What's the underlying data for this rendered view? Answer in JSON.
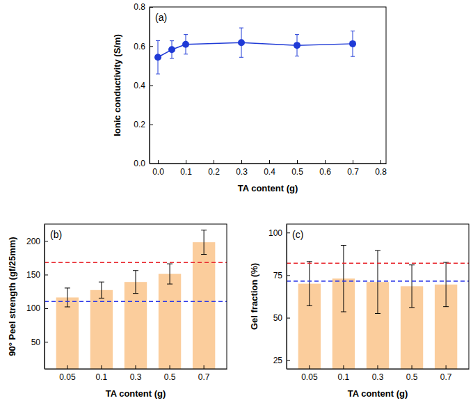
{
  "chart_data": [
    {
      "type": "line",
      "annotation": "(a)",
      "x_label": "TA content (g)",
      "y_label": "Ionic conductivity (S/m)",
      "x": [
        0,
        0.05,
        0.1,
        0.3,
        0.5,
        0.7
      ],
      "values": [
        0.543,
        0.582,
        0.609,
        0.618,
        0.604,
        0.612
      ],
      "errors": [
        0.085,
        0.045,
        0.05,
        0.075,
        0.055,
        0.065
      ],
      "color": "#1f3ad6",
      "marker": "circle",
      "line_style": "solid",
      "xlim": [
        -0.03,
        0.82
      ],
      "xticks": [
        {
          "value": 0,
          "label": "0.0"
        },
        0.1,
        0.2,
        0.3,
        0.4,
        0.5,
        0.6,
        0.7,
        0.8
      ],
      "ylim": [
        0,
        0.8
      ],
      "yticks": [
        {
          "value": 0,
          "label": "0.0"
        },
        0.2,
        0.4,
        0.6,
        0.8
      ]
    },
    {
      "type": "bar",
      "annotation": "(b)",
      "x_label": "TA content (g)",
      "y_label": "90° Peel strength (gf/25mm)",
      "categories": [
        "0.05",
        "0.1",
        "0.3",
        "0.5",
        "0.7"
      ],
      "values": [
        116,
        127,
        139,
        151,
        198
      ],
      "errors": [
        14,
        12,
        17,
        15,
        18
      ],
      "color": "#fbcd9c",
      "ylim": [
        10,
        225
      ],
      "yticks": [
        50,
        100,
        150,
        200
      ],
      "hlines": [
        {
          "value": 168,
          "color": "#e8262d",
          "line_style": "dashed"
        },
        {
          "value": 110,
          "color": "#2a36e8",
          "line_style": "dashed"
        }
      ]
    },
    {
      "type": "bar",
      "annotation": "(c)",
      "x_label": "TA content (g)",
      "y_label": "Gel fraction (%)",
      "categories": [
        "0.05",
        "0.1",
        "0.3",
        "0.5",
        "0.7"
      ],
      "values": [
        70,
        73,
        71,
        68.5,
        69.5
      ],
      "errors": [
        13,
        19.5,
        18.5,
        12.5,
        13
      ],
      "color": "#fbcd9c",
      "ylim": [
        20,
        105
      ],
      "yticks": [
        25,
        50,
        75,
        100
      ],
      "hlines": [
        {
          "value": 82,
          "color": "#e8262d",
          "line_style": "dashed"
        },
        {
          "value": 71.5,
          "color": "#2a36e8",
          "line_style": "dashed"
        }
      ]
    }
  ]
}
